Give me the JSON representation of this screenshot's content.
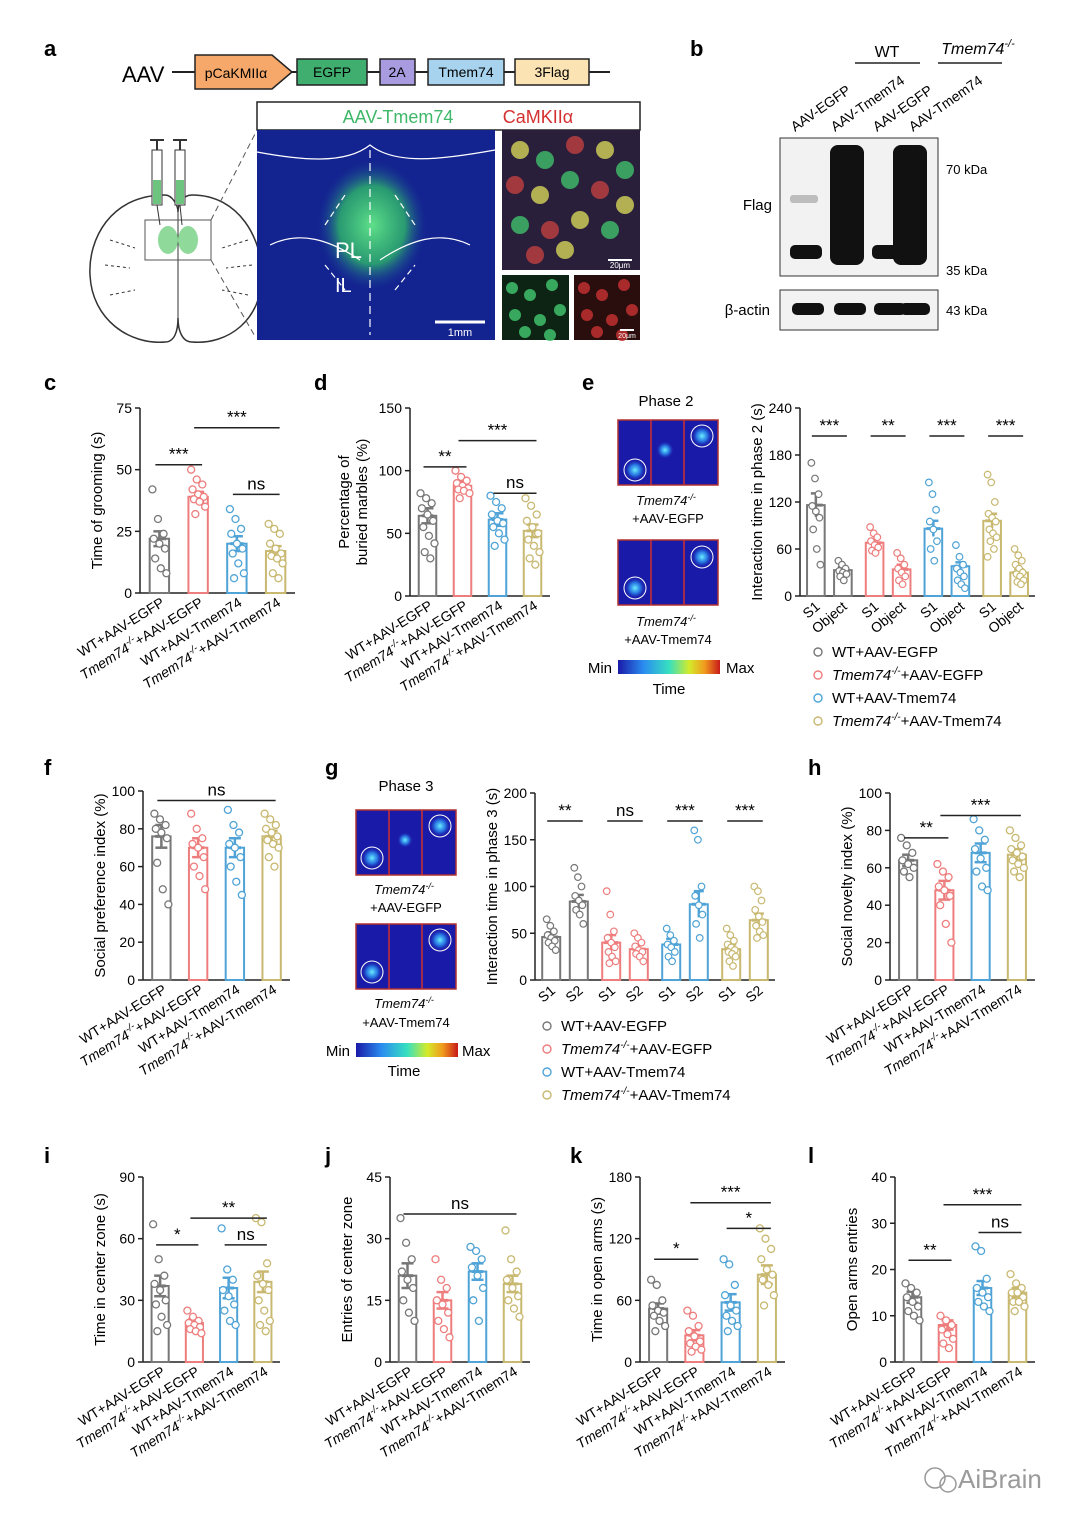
{
  "groups": [
    "WT+AAV-EGFP",
    "Tmem74-/-+AAV-EGFP",
    "WT+AAV-Tmem74",
    "Tmem74-/-+AAV-Tmem74"
  ],
  "group_tick_labels": [
    {
      "pre": "WT+AAV-EGFP",
      "sup": "",
      "post": ""
    },
    {
      "pre": "Tmem74",
      "sup": "-/-",
      "post": "+AAV-EGFP"
    },
    {
      "pre": "WT+AAV-Tmem74",
      "sup": "",
      "post": ""
    },
    {
      "pre": "Tmem74",
      "sup": "-/-",
      "post": "+AAV-Tmem74"
    }
  ],
  "colors": {
    "WT+AAV-EGFP": "#777777",
    "Tmem74-/-+AAV-EGFP": "#ee7d7d",
    "WT+AAV-Tmem74": "#4fa3d6",
    "Tmem74-/-+AAV-Tmem74": "#c8b870"
  },
  "panel_letters": {
    "a": "a",
    "b": "b",
    "c": "c",
    "d": "d",
    "e": "e",
    "f": "f",
    "g": "g",
    "h": "h",
    "i": "i",
    "j": "j",
    "k": "k",
    "l": "l"
  },
  "construct": {
    "prefix": "AAV",
    "elements": [
      "pCaKMIIα",
      "EGFP",
      "2A",
      "Tmem74",
      "3Flag"
    ],
    "colors": [
      "#f5a86a",
      "#3fae6e",
      "#a99be0",
      "#a8d3ee",
      "#fbe3b4"
    ]
  },
  "histology": {
    "label_green": "AAV-Tmem74",
    "label_red": "CaMKIIα",
    "region_pl": "PL",
    "region_il": "IL",
    "scale_main": "1mm",
    "scale_inset": "20μm",
    "scale_small": "20μm"
  },
  "western": {
    "group_wt": "WT",
    "group_ko_pre": "Tmem74",
    "group_ko_sup": "-/-",
    "lanes": [
      "AAV-EGFP",
      "AAV-Tmem74",
      "AAV-EGFP",
      "AAV-Tmem74"
    ],
    "row_flag": "Flag",
    "row_actin": "β-actin",
    "marker_top": "70 kDa",
    "marker_bottom": "35 kDa",
    "marker_actin": "43 kDa"
  },
  "heatmap": {
    "phase2_title": "Phase 2",
    "phase3_title": "Phase 3",
    "caption_egfp_pre": "Tmem74",
    "caption_egfp_sup": "-/-",
    "caption_egfp_post": "+AAV-EGFP",
    "caption_tmem_pre": "Tmem74",
    "caption_tmem_sup": "-/-",
    "caption_tmem_post": "+AAV-Tmem74",
    "scale_min": "Min",
    "scale_max": "Max",
    "scale_label": "Time"
  },
  "legend_entries": [
    {
      "pre": "WT+AAV-EGFP",
      "sup": "",
      "post": ""
    },
    {
      "pre": "Tmem74",
      "sup": "-/-",
      "post": "+AAV-EGFP"
    },
    {
      "pre": "WT+AAV-Tmem74",
      "sup": "",
      "post": ""
    },
    {
      "pre": "Tmem74",
      "sup": "-/-",
      "post": "+AAV-Tmem74"
    }
  ],
  "watermark": "AiBrain",
  "chart_data": [
    {
      "panel": "c",
      "type": "bar",
      "ylabel": "Time of grooming (s)",
      "ylim": [
        0,
        75
      ],
      "yticks": [
        0,
        25,
        50,
        75
      ],
      "values": [
        22,
        39,
        20,
        17
      ],
      "sem": [
        3,
        2,
        3,
        2
      ],
      "points": [
        [
          42,
          30,
          24,
          22,
          20,
          18,
          14,
          10,
          8
        ],
        [
          50,
          46,
          44,
          42,
          40,
          39,
          38,
          37,
          35,
          32
        ],
        [
          34,
          30,
          26,
          24,
          20,
          18,
          16,
          12,
          8,
          6
        ],
        [
          28,
          26,
          24,
          20,
          18,
          16,
          15,
          14,
          12,
          8,
          6
        ]
      ],
      "significance": [
        {
          "from": 0,
          "to": 1,
          "label": "***",
          "y": 52
        },
        {
          "from": 1,
          "to": 3,
          "label": "***",
          "y": 67
        },
        {
          "from": 2,
          "to": 3,
          "label": "ns",
          "y": 40
        }
      ]
    },
    {
      "panel": "d",
      "type": "bar",
      "ylabel": "Percentage of buried marbles (%)",
      "ylim": [
        0,
        150
      ],
      "yticks": [
        0,
        50,
        100,
        150
      ],
      "values": [
        64,
        88,
        61,
        52
      ],
      "sem": [
        6,
        3,
        5,
        5
      ],
      "points": [
        [
          82,
          78,
          74,
          70,
          65,
          60,
          55,
          48,
          42,
          35,
          30
        ],
        [
          100,
          95,
          92,
          90,
          88,
          86,
          85,
          84,
          82,
          78
        ],
        [
          80,
          75,
          70,
          65,
          60,
          58,
          55,
          50,
          45,
          40
        ],
        [
          78,
          72,
          65,
          60,
          55,
          50,
          45,
          40,
          35,
          30,
          25
        ]
      ],
      "significance": [
        {
          "from": 0,
          "to": 1,
          "label": "**",
          "y": 103
        },
        {
          "from": 1,
          "to": 3,
          "label": "***",
          "y": 124
        },
        {
          "from": 2,
          "to": 3,
          "label": "ns",
          "y": 82
        }
      ]
    },
    {
      "panel": "e",
      "type": "paired-bar",
      "ylabel": "Interaction time in phase 2 (s)",
      "ylim": [
        0,
        240
      ],
      "yticks": [
        0,
        60,
        120,
        180,
        240
      ],
      "categories": [
        "S1",
        "Object"
      ],
      "values": [
        [
          116,
          33
        ],
        [
          68,
          34
        ],
        [
          86,
          38
        ],
        [
          96,
          30
        ]
      ],
      "sem": [
        [
          15,
          4
        ],
        [
          5,
          6
        ],
        [
          10,
          5
        ],
        [
          9,
          4
        ]
      ],
      "points": [
        [
          [
            170,
            150,
            130,
            115,
            108,
            100,
            85,
            60,
            40
          ],
          [
            45,
            40,
            35,
            32,
            30,
            28,
            25,
            20
          ]
        ],
        [
          [
            88,
            80,
            75,
            70,
            65,
            62,
            58,
            55
          ],
          [
            55,
            48,
            40,
            35,
            30,
            25,
            20,
            15
          ]
        ],
        [
          [
            145,
            130,
            110,
            95,
            85,
            70,
            60,
            45
          ],
          [
            65,
            50,
            40,
            35,
            30,
            25,
            20,
            15,
            10
          ]
        ],
        [
          [
            155,
            145,
            120,
            105,
            100,
            95,
            85,
            80,
            75,
            70,
            60,
            50
          ],
          [
            60,
            52,
            45,
            40,
            35,
            30,
            28,
            25,
            20,
            18,
            15
          ]
        ]
      ],
      "significance": [
        {
          "group": 0,
          "label": "***"
        },
        {
          "group": 1,
          "label": "**"
        },
        {
          "group": 2,
          "label": "***"
        },
        {
          "group": 3,
          "label": "***"
        }
      ]
    },
    {
      "panel": "f",
      "type": "bar",
      "ylabel": "Social preference index (%)",
      "ylim": [
        0,
        100
      ],
      "yticks": [
        0,
        20,
        40,
        60,
        80,
        100
      ],
      "values": [
        76,
        70,
        70,
        76
      ],
      "sem": [
        6,
        5,
        5,
        3
      ],
      "points": [
        [
          88,
          85,
          82,
          80,
          78,
          75,
          62,
          48,
          40
        ],
        [
          88,
          80,
          75,
          72,
          70,
          65,
          60,
          55,
          48
        ],
        [
          90,
          82,
          78,
          72,
          70,
          65,
          60,
          52,
          45
        ],
        [
          88,
          85,
          82,
          80,
          78,
          76,
          74,
          72,
          70,
          65,
          60
        ]
      ],
      "significance": [
        {
          "from": 0,
          "to": 3,
          "label": "ns",
          "y": 95
        }
      ]
    },
    {
      "panel": "g",
      "type": "paired-bar",
      "ylabel": "Interaction time in phase 3 (s)",
      "ylim": [
        0,
        200
      ],
      "yticks": [
        0,
        50,
        100,
        150,
        200
      ],
      "categories": [
        "S1",
        "S2"
      ],
      "values": [
        [
          46,
          84
        ],
        [
          40,
          33
        ],
        [
          38,
          81
        ],
        [
          33,
          64
        ]
      ],
      "sem": [
        [
          5,
          7
        ],
        [
          8,
          5
        ],
        [
          6,
          14
        ],
        [
          5,
          7
        ]
      ],
      "points": [
        [
          [
            65,
            58,
            52,
            48,
            45,
            42,
            40,
            36,
            32
          ],
          [
            120,
            110,
            100,
            90,
            85,
            80,
            75,
            70,
            60
          ]
        ],
        [
          [
            95,
            70,
            52,
            45,
            40,
            35,
            30,
            25,
            20,
            18
          ],
          [
            50,
            45,
            40,
            36,
            32,
            30,
            28,
            25,
            20
          ]
        ],
        [
          [
            55,
            48,
            42,
            38,
            35,
            30,
            25,
            20
          ],
          [
            160,
            150,
            100,
            90,
            80,
            70,
            60,
            45
          ]
        ],
        [
          [
            55,
            48,
            42,
            38,
            35,
            32,
            30,
            28,
            25,
            20,
            15
          ],
          [
            100,
            95,
            85,
            75,
            68,
            62,
            58,
            52,
            48,
            45
          ]
        ]
      ],
      "significance": [
        {
          "group": 0,
          "label": "**"
        },
        {
          "group": 1,
          "label": "ns"
        },
        {
          "group": 2,
          "label": "***"
        },
        {
          "group": 3,
          "label": "***"
        }
      ]
    },
    {
      "panel": "h",
      "type": "bar",
      "ylabel": "Social novelty index (%)",
      "ylim": [
        0,
        100
      ],
      "yticks": [
        0,
        20,
        40,
        60,
        80,
        100
      ],
      "values": [
        64,
        48,
        68,
        67
      ],
      "sem": [
        3,
        5,
        5,
        3
      ],
      "points": [
        [
          76,
          72,
          68,
          64,
          62,
          60,
          58,
          55
        ],
        [
          62,
          58,
          55,
          50,
          48,
          45,
          40,
          30,
          20
        ],
        [
          86,
          80,
          75,
          70,
          65,
          60,
          58,
          50,
          48
        ],
        [
          80,
          76,
          72,
          70,
          68,
          66,
          64,
          62,
          60,
          58,
          55
        ]
      ],
      "significance": [
        {
          "from": 0,
          "to": 1,
          "label": "**",
          "y": 76
        },
        {
          "from": 1,
          "to": 3,
          "label": "***",
          "y": 88
        }
      ]
    },
    {
      "panel": "i",
      "type": "bar",
      "ylabel": "Time in center zone (s)",
      "ylim": [
        0,
        90
      ],
      "yticks": [
        0,
        30,
        60,
        90
      ],
      "values": [
        37,
        19,
        36,
        39
      ],
      "sem": [
        5,
        2,
        5,
        5
      ],
      "points": [
        [
          67,
          50,
          42,
          38,
          35,
          30,
          28,
          22,
          18,
          15
        ],
        [
          25,
          22,
          20,
          19,
          18,
          17,
          16,
          15,
          14
        ],
        [
          65,
          45,
          40,
          35,
          32,
          28,
          25,
          20,
          18
        ],
        [
          70,
          68,
          48,
          42,
          38,
          35,
          30,
          25,
          20,
          18,
          15
        ]
      ],
      "significance": [
        {
          "from": 0,
          "to": 1,
          "label": "*",
          "y": 57
        },
        {
          "from": 1,
          "to": 3,
          "label": "**",
          "y": 70
        },
        {
          "from": 2,
          "to": 3,
          "label": "ns",
          "y": 57
        }
      ]
    },
    {
      "panel": "j",
      "type": "bar",
      "ylabel": "Entries of center zone",
      "ylim": [
        0,
        45
      ],
      "yticks": [
        0,
        15,
        30,
        45
      ],
      "values": [
        21,
        15,
        22,
        19
      ],
      "sem": [
        3,
        2,
        2,
        2
      ],
      "points": [
        [
          35,
          29,
          25,
          22,
          20,
          18,
          15,
          12,
          10
        ],
        [
          25,
          20,
          18,
          15,
          14,
          12,
          10,
          8,
          6
        ],
        [
          28,
          27,
          25,
          23,
          21,
          18,
          15,
          10
        ],
        [
          32,
          25,
          22,
          20,
          18,
          16,
          15,
          13,
          11
        ]
      ],
      "significance": [
        {
          "from": 0,
          "to": 3,
          "label": "ns",
          "y": 36
        }
      ]
    },
    {
      "panel": "k",
      "type": "bar",
      "ylabel": "Time in open arms (s)",
      "ylim": [
        0,
        180
      ],
      "yticks": [
        0,
        60,
        120,
        180
      ],
      "values": [
        52,
        26,
        58,
        85
      ],
      "sem": [
        5,
        5,
        8,
        9
      ],
      "points": [
        [
          80,
          75,
          60,
          55,
          50,
          48,
          45,
          40,
          35,
          30
        ],
        [
          50,
          45,
          35,
          30,
          25,
          20,
          18,
          15,
          12,
          10
        ],
        [
          100,
          95,
          75,
          65,
          55,
          50,
          45,
          40,
          35,
          30
        ],
        [
          130,
          120,
          110,
          100,
          90,
          85,
          80,
          75,
          65,
          55
        ]
      ],
      "significance": [
        {
          "from": 0,
          "to": 1,
          "label": "*",
          "y": 100
        },
        {
          "from": 1,
          "to": 3,
          "label": "***",
          "y": 155
        },
        {
          "from": 2,
          "to": 3,
          "label": "*",
          "y": 130
        }
      ]
    },
    {
      "panel": "l",
      "type": "bar",
      "ylabel": "Open arms entries",
      "ylim": [
        0,
        40
      ],
      "yticks": [
        0,
        10,
        20,
        30,
        40
      ],
      "values": [
        14,
        8,
        16,
        15
      ],
      "sem": [
        1.2,
        1,
        1.5,
        1
      ],
      "points": [
        [
          17,
          16,
          15,
          14,
          13,
          12,
          11,
          10,
          9
        ],
        [
          10,
          9,
          8,
          7,
          6,
          5,
          4,
          3
        ],
        [
          25,
          24,
          18,
          16,
          15,
          14,
          13,
          12,
          11
        ],
        [
          19,
          17,
          16,
          15,
          15,
          14,
          13,
          13,
          12,
          11
        ]
      ],
      "significance": [
        {
          "from": 0,
          "to": 1,
          "label": "**",
          "y": 22
        },
        {
          "from": 1,
          "to": 3,
          "label": "***",
          "y": 34
        },
        {
          "from": 2,
          "to": 3,
          "label": "ns",
          "y": 28
        }
      ]
    }
  ]
}
